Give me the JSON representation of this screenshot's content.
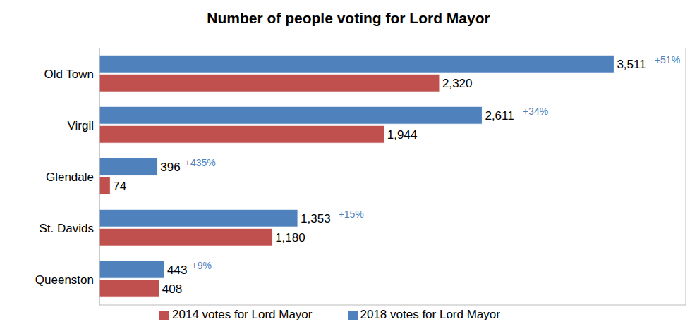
{
  "chart_data": {
    "type": "bar",
    "title": "Number of people voting for Lord Mayor",
    "orientation": "horizontal",
    "categories": [
      "Old Town",
      "Virgil",
      "Glendale",
      "St. Davids",
      "Queenston"
    ],
    "series": [
      {
        "name": "2018 votes for Lord Mayor",
        "color": "#4f81bd",
        "values": [
          3511,
          2611,
          396,
          1353,
          443
        ],
        "value_labels": [
          "3,511",
          "2,611",
          "396",
          "1,353",
          "443"
        ],
        "annotations": [
          "+51%",
          "+34%",
          "+435%",
          "+15%",
          "+9%"
        ]
      },
      {
        "name": "2014 votes for Lord Mayor",
        "color": "#c0504d",
        "values": [
          2320,
          1944,
          74,
          1180,
          408
        ],
        "value_labels": [
          "2,320",
          "1,944",
          "74",
          "1,180",
          "408"
        ]
      }
    ],
    "xlim": [
      0,
      4000
    ],
    "data_labels": true,
    "tick_labels": "y",
    "grid": false,
    "legend": "bottom"
  }
}
